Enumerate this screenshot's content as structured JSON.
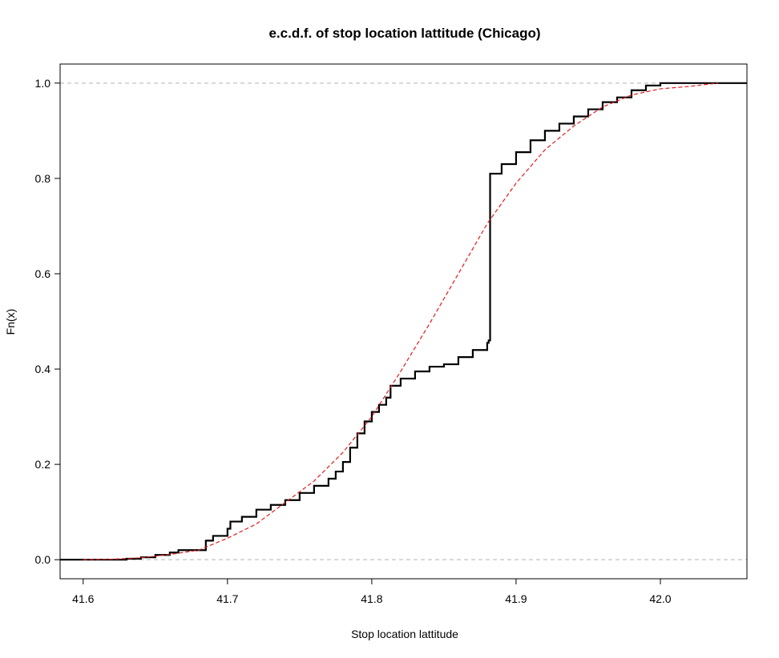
{
  "chart_data": {
    "type": "line",
    "title": "e.c.d.f. of stop location lattitude  (Chicago)",
    "xlabel": "Stop location lattitude",
    "ylabel": "Fn(x)",
    "xlim": [
      41.584,
      42.06
    ],
    "ylim": [
      -0.04,
      1.04
    ],
    "x_ticks": [
      "41.6",
      "41.7",
      "41.8",
      "41.9",
      "42.0"
    ],
    "y_ticks": [
      "0.0",
      "0.2",
      "0.4",
      "0.6",
      "0.8",
      "1.0"
    ],
    "reference_lines_y": [
      0,
      1
    ],
    "grid": false,
    "series": [
      {
        "kind": "ecdf-step",
        "color": "#000000",
        "points": [
          [
            41.584,
            0.0
          ],
          [
            41.63,
            0.002
          ],
          [
            41.64,
            0.005
          ],
          [
            41.65,
            0.01
          ],
          [
            41.66,
            0.015
          ],
          [
            41.666,
            0.02
          ],
          [
            41.683,
            0.02
          ],
          [
            41.685,
            0.04
          ],
          [
            41.69,
            0.05
          ],
          [
            41.7,
            0.065
          ],
          [
            41.702,
            0.08
          ],
          [
            41.71,
            0.09
          ],
          [
            41.72,
            0.105
          ],
          [
            41.73,
            0.115
          ],
          [
            41.74,
            0.125
          ],
          [
            41.75,
            0.14
          ],
          [
            41.76,
            0.155
          ],
          [
            41.77,
            0.17
          ],
          [
            41.775,
            0.185
          ],
          [
            41.78,
            0.205
          ],
          [
            41.785,
            0.235
          ],
          [
            41.79,
            0.265
          ],
          [
            41.795,
            0.29
          ],
          [
            41.8,
            0.31
          ],
          [
            41.805,
            0.325
          ],
          [
            41.81,
            0.34
          ],
          [
            41.813,
            0.365
          ],
          [
            41.82,
            0.38
          ],
          [
            41.83,
            0.395
          ],
          [
            41.84,
            0.405
          ],
          [
            41.85,
            0.41
          ],
          [
            41.86,
            0.425
          ],
          [
            41.87,
            0.44
          ],
          [
            41.88,
            0.455
          ],
          [
            41.881,
            0.46
          ],
          [
            41.882,
            0.81
          ],
          [
            41.89,
            0.83
          ],
          [
            41.9,
            0.855
          ],
          [
            41.91,
            0.88
          ],
          [
            41.92,
            0.9
          ],
          [
            41.93,
            0.915
          ],
          [
            41.94,
            0.93
          ],
          [
            41.95,
            0.945
          ],
          [
            41.96,
            0.96
          ],
          [
            41.97,
            0.97
          ],
          [
            41.98,
            0.985
          ],
          [
            41.99,
            0.995
          ],
          [
            42.0,
            1.0
          ],
          [
            42.06,
            1.0
          ]
        ]
      },
      {
        "kind": "normal-cdf-fit",
        "color": "#e31a1c",
        "dashed": true,
        "points": [
          [
            41.6,
            0.0
          ],
          [
            41.62,
            0.001
          ],
          [
            41.64,
            0.004
          ],
          [
            41.66,
            0.011
          ],
          [
            41.68,
            0.02
          ],
          [
            41.7,
            0.045
          ],
          [
            41.72,
            0.075
          ],
          [
            41.74,
            0.12
          ],
          [
            41.76,
            0.165
          ],
          [
            41.78,
            0.225
          ],
          [
            41.8,
            0.3
          ],
          [
            41.82,
            0.395
          ],
          [
            41.84,
            0.495
          ],
          [
            41.86,
            0.6
          ],
          [
            41.88,
            0.705
          ],
          [
            41.9,
            0.79
          ],
          [
            41.92,
            0.86
          ],
          [
            41.94,
            0.91
          ],
          [
            41.96,
            0.95
          ],
          [
            41.98,
            0.975
          ],
          [
            42.0,
            0.988
          ],
          [
            42.02,
            0.993
          ],
          [
            42.04,
            1.0
          ]
        ]
      }
    ]
  }
}
